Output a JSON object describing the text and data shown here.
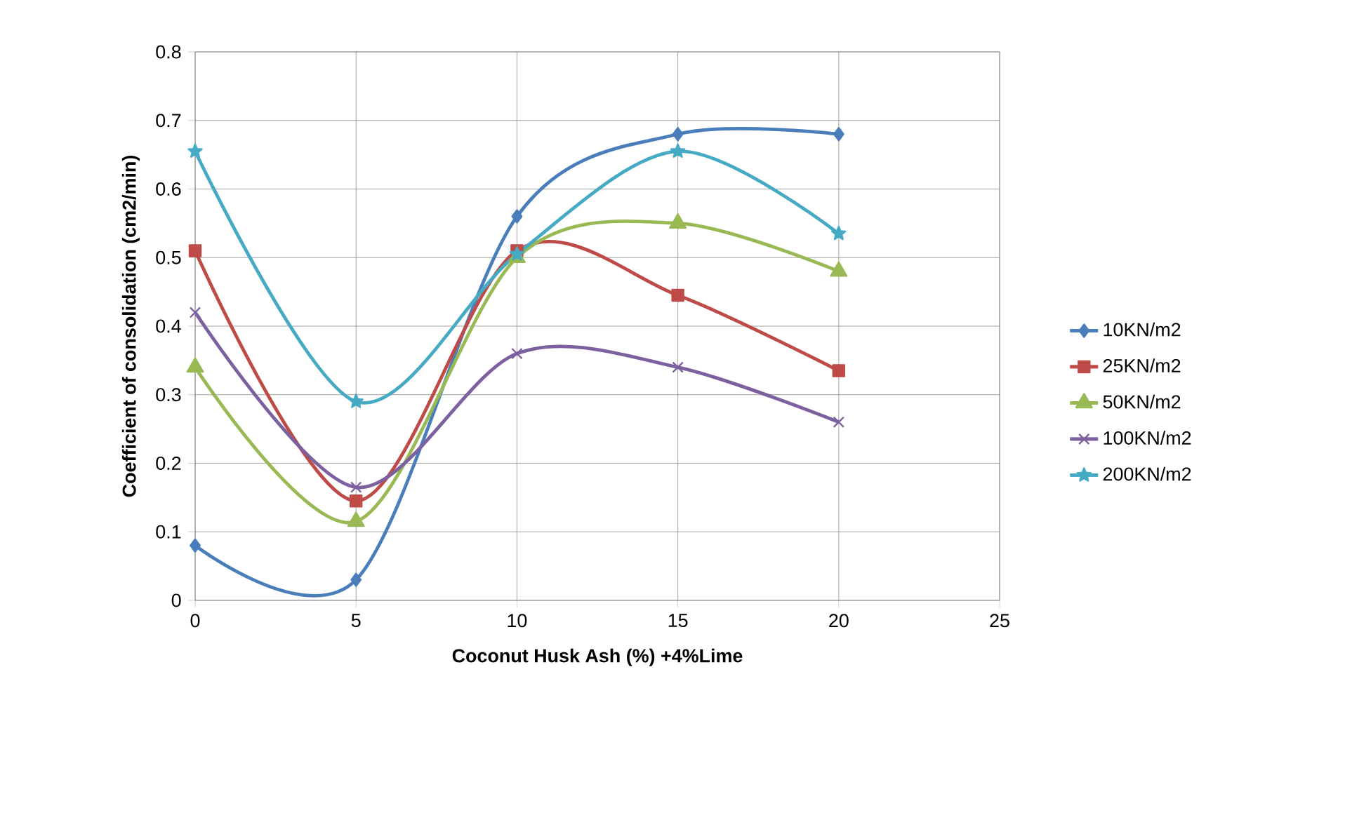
{
  "chart_data": {
    "type": "line",
    "xlabel": "Coconut Husk Ash (%) +4%Lime",
    "ylabel": "Coefficient of consolidation (cm2/min)",
    "x": [
      0,
      5,
      10,
      15,
      20
    ],
    "xlim": [
      0,
      25
    ],
    "xticks": [
      0,
      5,
      10,
      15,
      20,
      25
    ],
    "ylim": [
      0,
      0.8
    ],
    "yticks": [
      0,
      0.1,
      0.2,
      0.3,
      0.4,
      0.5,
      0.6,
      0.7,
      0.8
    ],
    "grid": true,
    "legend": "right",
    "series": [
      {
        "name": "10KN/m2",
        "color": "#4a7ebb",
        "marker": "diamond",
        "values": [
          0.08,
          0.03,
          0.56,
          0.68,
          0.68
        ]
      },
      {
        "name": "25KN/m2",
        "color": "#be4b48",
        "marker": "square",
        "values": [
          0.51,
          0.145,
          0.51,
          0.445,
          0.335
        ]
      },
      {
        "name": "50KN/m2",
        "color": "#98b954",
        "marker": "triangle",
        "values": [
          0.34,
          0.115,
          0.5,
          0.55,
          0.48
        ]
      },
      {
        "name": "100KN/m2",
        "color": "#7d60a0",
        "marker": "cross",
        "values": [
          0.42,
          0.165,
          0.36,
          0.34,
          0.26
        ]
      },
      {
        "name": "200KN/m2",
        "color": "#46aac5",
        "marker": "star",
        "values": [
          0.655,
          0.29,
          0.505,
          0.655,
          0.535
        ]
      }
    ]
  }
}
